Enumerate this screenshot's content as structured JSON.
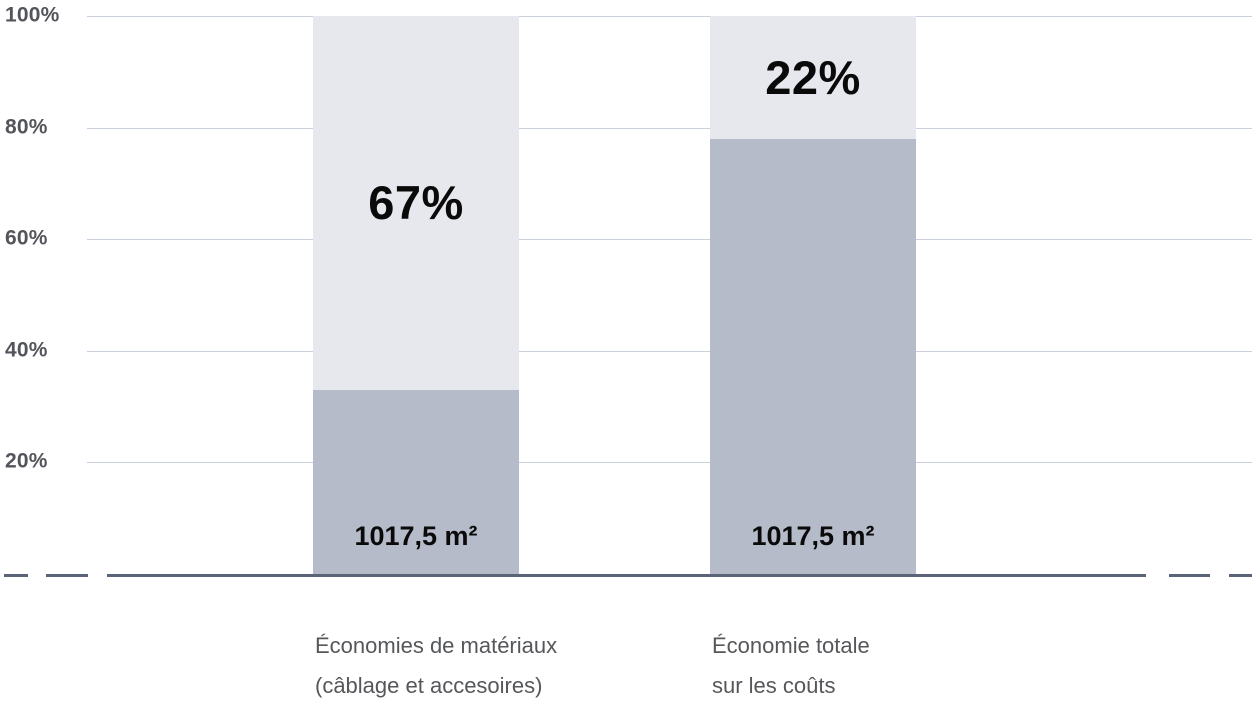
{
  "chart_data": {
    "type": "bar",
    "subtype": "stacked-100-percent-column",
    "title": "",
    "xlabel": "",
    "ylabel": "",
    "legend": null,
    "categories": [
      "Économies de matériaux (câblage et accesoires)",
      "Économie totale sur les coûts"
    ],
    "y_axis": {
      "range": [
        0,
        100
      ],
      "unit": "%",
      "grid": true,
      "ticks": [
        {
          "label": "100%",
          "value": 100
        },
        {
          "label": "80%",
          "value": 80
        },
        {
          "label": "60%",
          "value": 60
        },
        {
          "label": "40%",
          "value": 40
        },
        {
          "label": "20%",
          "value": 20
        }
      ]
    },
    "bars": [
      {
        "category_lines": [
          "Économies de matériaux",
          "(câblage et accesoires)"
        ],
        "bottom_pct": 33,
        "top_pct": 67,
        "bottom_label": "1017,5 m²",
        "top_label": "67%"
      },
      {
        "category_lines": [
          "Économie totale",
          "sur les coûts"
        ],
        "bottom_pct": 78,
        "top_pct": 22,
        "bottom_label": "1017,5 m²",
        "top_label": "22%"
      }
    ],
    "colors": {
      "segment_top": "#e7e8ee",
      "segment_bottom": "#b6bbc9",
      "axis_line": "#5a6378",
      "gridline": "#cbd0de",
      "tick_text": "#54555b",
      "category_text": "#55575a",
      "value_text": "#0a0a0a"
    }
  }
}
